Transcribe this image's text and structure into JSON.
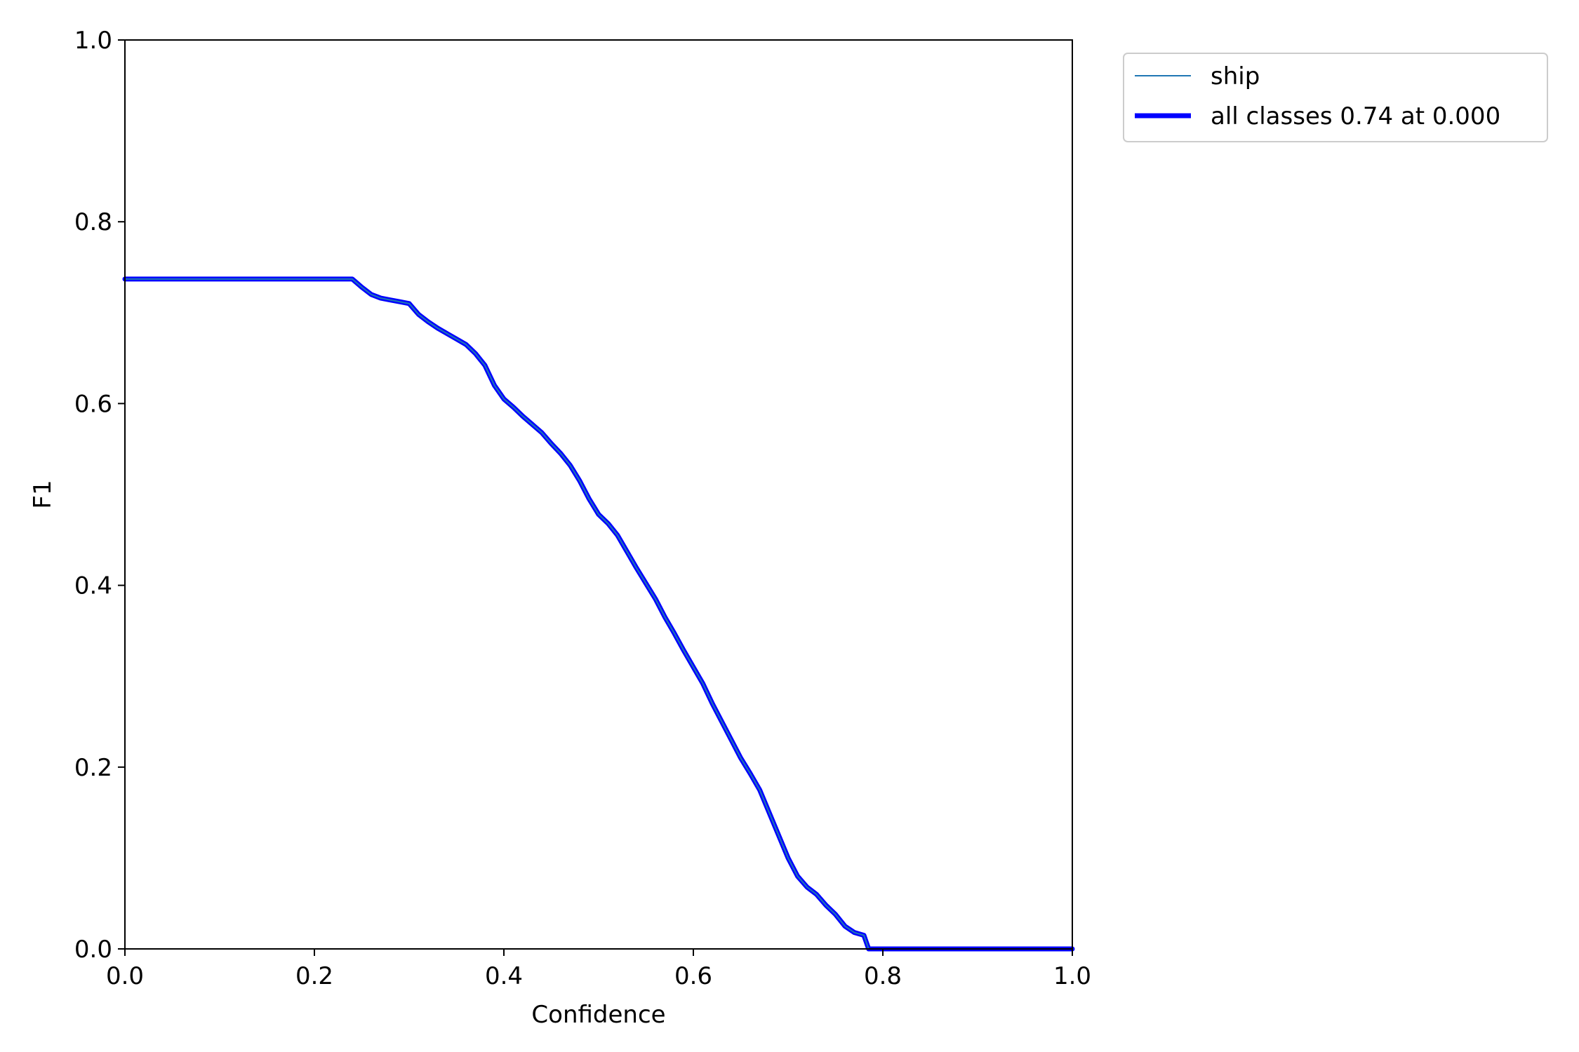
{
  "chart_data": {
    "type": "line",
    "title": "",
    "xlabel": "Confidence",
    "ylabel": "F1",
    "xlim": [
      0.0,
      1.0
    ],
    "ylim": [
      0.0,
      1.0
    ],
    "xticks": [
      "0.0",
      "0.2",
      "0.4",
      "0.6",
      "0.8",
      "1.0"
    ],
    "yticks": [
      "0.0",
      "0.2",
      "0.4",
      "0.6",
      "0.8",
      "1.0"
    ],
    "grid": false,
    "legend_position": "outside-top-right",
    "series": [
      {
        "name": "ship",
        "color": "#1f77b4",
        "line_style": "thin",
        "x": [
          0.0,
          0.1,
          0.2,
          0.24,
          0.25,
          0.26,
          0.27,
          0.28,
          0.29,
          0.3,
          0.31,
          0.32,
          0.33,
          0.34,
          0.35,
          0.36,
          0.37,
          0.38,
          0.39,
          0.4,
          0.41,
          0.42,
          0.43,
          0.44,
          0.45,
          0.46,
          0.47,
          0.48,
          0.49,
          0.5,
          0.51,
          0.52,
          0.53,
          0.54,
          0.55,
          0.56,
          0.57,
          0.58,
          0.59,
          0.6,
          0.61,
          0.62,
          0.63,
          0.64,
          0.65,
          0.66,
          0.67,
          0.68,
          0.69,
          0.7,
          0.71,
          0.72,
          0.73,
          0.74,
          0.75,
          0.76,
          0.77,
          0.78,
          0.785,
          0.79,
          0.85,
          0.9,
          0.95,
          1.0
        ],
        "y": [
          0.737,
          0.737,
          0.737,
          0.737,
          0.728,
          0.72,
          0.716,
          0.714,
          0.712,
          0.71,
          0.698,
          0.69,
          0.683,
          0.677,
          0.671,
          0.665,
          0.655,
          0.642,
          0.62,
          0.605,
          0.596,
          0.586,
          0.577,
          0.568,
          0.556,
          0.545,
          0.532,
          0.515,
          0.495,
          0.478,
          0.468,
          0.455,
          0.437,
          0.419,
          0.402,
          0.385,
          0.365,
          0.347,
          0.328,
          0.31,
          0.292,
          0.27,
          0.25,
          0.23,
          0.21,
          0.193,
          0.175,
          0.15,
          0.125,
          0.1,
          0.08,
          0.068,
          0.06,
          0.048,
          0.038,
          0.025,
          0.018,
          0.015,
          0.0,
          0.0,
          0.0,
          0.0,
          0.0,
          0.0
        ]
      },
      {
        "name": "all classes 0.74 at 0.000",
        "color": "#0000ff",
        "line_style": "thick",
        "x": [
          0.0,
          0.1,
          0.2,
          0.24,
          0.25,
          0.26,
          0.27,
          0.28,
          0.29,
          0.3,
          0.31,
          0.32,
          0.33,
          0.34,
          0.35,
          0.36,
          0.37,
          0.38,
          0.39,
          0.4,
          0.41,
          0.42,
          0.43,
          0.44,
          0.45,
          0.46,
          0.47,
          0.48,
          0.49,
          0.5,
          0.51,
          0.52,
          0.53,
          0.54,
          0.55,
          0.56,
          0.57,
          0.58,
          0.59,
          0.6,
          0.61,
          0.62,
          0.63,
          0.64,
          0.65,
          0.66,
          0.67,
          0.68,
          0.69,
          0.7,
          0.71,
          0.72,
          0.73,
          0.74,
          0.75,
          0.76,
          0.77,
          0.78,
          0.785,
          0.79,
          0.85,
          0.9,
          0.95,
          1.0
        ],
        "y": [
          0.737,
          0.737,
          0.737,
          0.737,
          0.728,
          0.72,
          0.716,
          0.714,
          0.712,
          0.71,
          0.698,
          0.69,
          0.683,
          0.677,
          0.671,
          0.665,
          0.655,
          0.642,
          0.62,
          0.605,
          0.596,
          0.586,
          0.577,
          0.568,
          0.556,
          0.545,
          0.532,
          0.515,
          0.495,
          0.478,
          0.468,
          0.455,
          0.437,
          0.419,
          0.402,
          0.385,
          0.365,
          0.347,
          0.328,
          0.31,
          0.292,
          0.27,
          0.25,
          0.23,
          0.21,
          0.193,
          0.175,
          0.15,
          0.125,
          0.1,
          0.08,
          0.068,
          0.06,
          0.048,
          0.038,
          0.025,
          0.018,
          0.015,
          0.0,
          0.0,
          0.0,
          0.0,
          0.0,
          0.0
        ]
      }
    ]
  }
}
